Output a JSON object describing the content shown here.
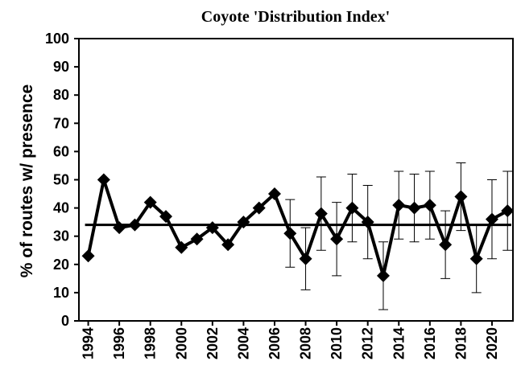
{
  "chart_data": {
    "type": "line",
    "title": "Coyote 'Distribution Index'",
    "y_label": "% of routes w/ presence",
    "x": [
      1994,
      1995,
      1996,
      1997,
      1998,
      1999,
      2000,
      2001,
      2002,
      2003,
      2004,
      2005,
      2006,
      2007,
      2008,
      2009,
      2010,
      2011,
      2012,
      2013,
      2014,
      2015,
      2016,
      2017,
      2018,
      2019,
      2020,
      2021
    ],
    "series": [
      {
        "color": "#000000",
        "values": [
          23,
          50,
          33,
          34,
          42,
          37,
          26,
          29,
          33,
          27,
          35,
          40,
          45,
          31,
          22,
          38,
          29,
          40,
          35,
          16,
          41,
          40,
          41,
          27,
          44,
          22,
          36,
          39
        ],
        "errors": [
          null,
          null,
          null,
          null,
          null,
          null,
          null,
          null,
          null,
          null,
          null,
          null,
          null,
          12,
          11,
          13,
          13,
          12,
          13,
          12,
          12,
          12,
          12,
          12,
          12,
          12,
          14,
          14
        ]
      }
    ],
    "reference_line": 34,
    "xlim": [
      1993.4,
      2021.35
    ],
    "xticks": [
      1994,
      1996,
      1998,
      2000,
      2002,
      2004,
      2006,
      2008,
      2010,
      2012,
      2014,
      2016,
      2018,
      2020
    ],
    "ylim": [
      0,
      100
    ],
    "yticks": [
      0,
      10,
      20,
      30,
      40,
      50,
      60,
      70,
      80,
      90,
      100
    ]
  }
}
